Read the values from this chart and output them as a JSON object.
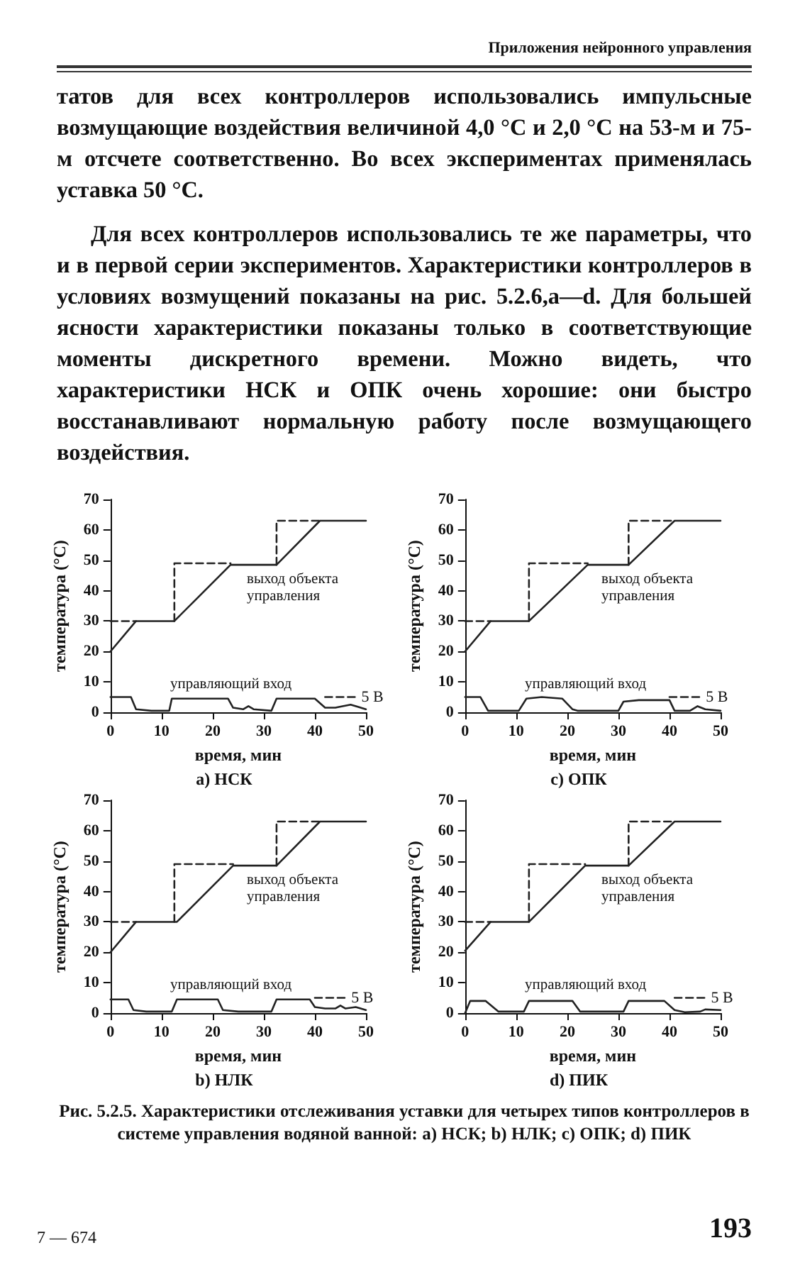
{
  "chart_data": [
    {
      "type": "other",
      "annotations": [
        "Приложения нейронного управления",
        "татов для всех контроллеров использовались импульсные возмущающие воздействия величиной 4,0 °C и 2,0 °C на 53-м и 75-м отсчете соответственно. Во всех экспериментах применялась уставка 50 °C.",
        "Для всех контроллеров использовались те же параметры, что и в первой серии экспериментов. Характеристики контроллеров в условиях возмущений показаны на рис. 5.2.6,a—d. Для большей ясности характеристики показаны только в соответствующие моменты дискретного времени. Можно видеть, что характеристики НСК и ОПК очень хорошие: они быстро восстанавливают нормальную работу после возмущающего воздействия."
      ]
    },
    {
      "type": "line",
      "title": "a) НСК",
      "xlabel": "время, мин",
      "ylabel": "температура (°C)",
      "xlim": [
        0,
        50
      ],
      "xticks": [
        0,
        10,
        20,
        30,
        40,
        50
      ],
      "ylim": [
        0,
        70
      ],
      "yticks": [
        0,
        10,
        20,
        30,
        40,
        50,
        60,
        70
      ],
      "grid": false,
      "legend": false,
      "marker": "none",
      "series": [
        {
          "color": "#222222",
          "line_style": "dashed",
          "x": [
            0,
            5
          ],
          "values": [
            30,
            30
          ]
        },
        {
          "color": "#222222",
          "line_style": "dashed",
          "x": [
            12.5,
            12.5,
            23.5
          ],
          "values": [
            30,
            49,
            49
          ]
        },
        {
          "color": "#222222",
          "line_style": "dashed",
          "x": [
            32.5,
            32.5,
            41
          ],
          "values": [
            48.5,
            63,
            63
          ]
        },
        {
          "color": "#222222",
          "line_style": "solid",
          "x": [
            0,
            5,
            12.5,
            23.5,
            32.5,
            41,
            50
          ],
          "values": [
            20,
            30,
            30,
            48.5,
            48.5,
            63,
            63
          ]
        },
        {
          "color": "#222222",
          "line_style": "solid",
          "x": [
            0,
            4,
            5,
            8,
            11.5,
            12,
            23,
            24,
            26,
            27,
            28,
            31.5,
            32.5,
            40,
            42,
            44,
            47,
            50
          ],
          "values": [
            5,
            5,
            1,
            0.5,
            0.5,
            4.5,
            4.5,
            1.5,
            1,
            2,
            1,
            0.5,
            4.5,
            4.5,
            1.5,
            1.5,
            2.5,
            1
          ]
        },
        {
          "name": "5 В",
          "color": "#222222",
          "line_style": "dashed",
          "x": [
            42,
            48
          ],
          "values": [
            5,
            5
          ]
        }
      ],
      "annotations": [
        "выход объекта управления",
        "управляющий вход"
      ]
    },
    {
      "type": "line",
      "title": "c) ОПК",
      "xlabel": "время, мин",
      "ylabel": "температура (°C)",
      "xlim": [
        0,
        50
      ],
      "xticks": [
        0,
        10,
        20,
        30,
        40,
        50
      ],
      "ylim": [
        0,
        70
      ],
      "yticks": [
        0,
        10,
        20,
        30,
        40,
        50,
        60,
        70
      ],
      "grid": false,
      "legend": false,
      "marker": "none",
      "series": [
        {
          "color": "#222222",
          "line_style": "dashed",
          "x": [
            0,
            5
          ],
          "values": [
            30,
            30
          ]
        },
        {
          "color": "#222222",
          "line_style": "dashed",
          "x": [
            12.5,
            12.5,
            24
          ],
          "values": [
            30,
            49,
            49
          ]
        },
        {
          "color": "#222222",
          "line_style": "dashed",
          "x": [
            32,
            32,
            41
          ],
          "values": [
            48.5,
            63,
            63
          ]
        },
        {
          "color": "#222222",
          "line_style": "solid",
          "x": [
            0,
            5,
            12.5,
            24,
            32,
            41,
            50
          ],
          "values": [
            20,
            30,
            30,
            48.5,
            48.5,
            63,
            63
          ]
        },
        {
          "color": "#222222",
          "line_style": "solid",
          "x": [
            0,
            3,
            4.5,
            10.5,
            12,
            15,
            19,
            21,
            22,
            30,
            31,
            34,
            40,
            41,
            44,
            45.5,
            47,
            50
          ],
          "values": [
            5,
            5,
            0.5,
            0.5,
            4.5,
            5,
            4.5,
            1,
            0.5,
            0.5,
            3.5,
            4,
            4,
            0.5,
            0.5,
            2,
            1,
            0.5
          ]
        },
        {
          "name": "5 В",
          "color": "#222222",
          "line_style": "dashed",
          "x": [
            40,
            46
          ],
          "values": [
            5,
            5
          ]
        }
      ],
      "annotations": [
        "выход объекта управления",
        "управляющий вход"
      ]
    },
    {
      "type": "line",
      "title": "b) НЛК",
      "xlabel": "время, мин",
      "ylabel": "температура (°C)",
      "xlim": [
        0,
        50
      ],
      "xticks": [
        0,
        10,
        20,
        30,
        40,
        50
      ],
      "ylim": [
        0,
        70
      ],
      "yticks": [
        0,
        10,
        20,
        30,
        40,
        50,
        60,
        70
      ],
      "grid": false,
      "legend": false,
      "marker": "none",
      "series": [
        {
          "color": "#222222",
          "line_style": "dashed",
          "x": [
            0,
            5
          ],
          "values": [
            30,
            30
          ]
        },
        {
          "color": "#222222",
          "line_style": "dashed",
          "x": [
            12.5,
            12.5,
            24
          ],
          "values": [
            30,
            49,
            49
          ]
        },
        {
          "color": "#222222",
          "line_style": "dashed",
          "x": [
            32.5,
            32.5,
            41
          ],
          "values": [
            48.5,
            63,
            63
          ]
        },
        {
          "color": "#222222",
          "line_style": "solid",
          "x": [
            0,
            5,
            13,
            24,
            32.5,
            41,
            50
          ],
          "values": [
            20,
            30,
            30,
            48.5,
            48.5,
            63,
            63
          ]
        },
        {
          "color": "#222222",
          "line_style": "solid",
          "x": [
            0,
            3.5,
            4.5,
            7,
            12,
            13,
            21,
            22,
            25,
            31.5,
            32.5,
            39,
            40,
            42,
            44,
            45,
            46,
            48,
            50
          ],
          "values": [
            4.5,
            4.5,
            1,
            0.5,
            0.5,
            4.5,
            4.5,
            1,
            0.5,
            0.5,
            4.5,
            4.5,
            2,
            1.5,
            1.5,
            2.5,
            1.5,
            2,
            1
          ]
        },
        {
          "name": "5 В",
          "color": "#222222",
          "line_style": "dashed",
          "x": [
            40,
            46
          ],
          "values": [
            5,
            5
          ]
        }
      ],
      "annotations": [
        "выход объекта управления",
        "управляющий вход"
      ]
    },
    {
      "type": "line",
      "title": "d) ПИК",
      "xlabel": "время, мин",
      "ylabel": "температура (°C)",
      "xlim": [
        0,
        50
      ],
      "xticks": [
        0,
        10,
        20,
        30,
        40,
        50
      ],
      "ylim": [
        0,
        70
      ],
      "yticks": [
        0,
        10,
        20,
        30,
        40,
        50,
        60,
        70
      ],
      "grid": false,
      "legend": false,
      "marker": "none",
      "series": [
        {
          "color": "#222222",
          "line_style": "dashed",
          "x": [
            0,
            5
          ],
          "values": [
            30,
            30
          ]
        },
        {
          "color": "#222222",
          "line_style": "dashed",
          "x": [
            12.5,
            12.5,
            23.5
          ],
          "values": [
            30,
            49,
            49
          ]
        },
        {
          "color": "#222222",
          "line_style": "dashed",
          "x": [
            32,
            32,
            41
          ],
          "values": [
            48.5,
            63,
            63
          ]
        },
        {
          "color": "#222222",
          "line_style": "solid",
          "x": [
            0,
            5,
            12.5,
            23.5,
            32,
            41,
            50
          ],
          "values": [
            20.5,
            30,
            30,
            48.5,
            48.5,
            63,
            63
          ]
        },
        {
          "color": "#222222",
          "line_style": "solid",
          "x": [
            0,
            1,
            4,
            6.5,
            11.5,
            12.5,
            21,
            22.5,
            31,
            32,
            39,
            41,
            43,
            46,
            47,
            50
          ],
          "values": [
            0,
            4,
            4,
            0.5,
            0.5,
            4,
            4,
            0.5,
            0.5,
            4,
            4,
            1,
            0.3,
            0.5,
            1.2,
            1
          ]
        },
        {
          "name": "5 В",
          "color": "#222222",
          "line_style": "dashed",
          "x": [
            41,
            47
          ],
          "values": [
            5,
            5
          ]
        }
      ],
      "annotations": [
        "выход объекта управления",
        "управляющий вход"
      ]
    },
    {
      "type": "other",
      "annotations": [
        "Рис. 5.2.5. Характеристики отслеживания уставки для четырех типов контроллеров в системе управления водяной ванной: a) НСК; b) НЛК; c) ОПК; d) ПИК",
        "7 — 674",
        "193"
      ]
    }
  ]
}
